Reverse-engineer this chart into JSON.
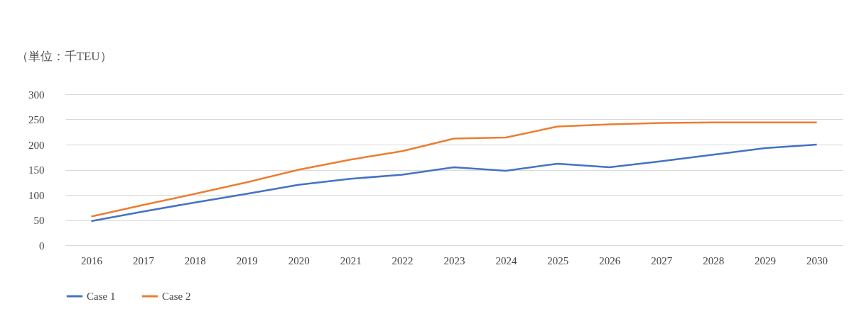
{
  "chart_data": {
    "type": "line",
    "ylabel": "（単位：千TEU）",
    "categories": [
      "2016",
      "2017",
      "2018",
      "2019",
      "2020",
      "2021",
      "2022",
      "2023",
      "2024",
      "2025",
      "2026",
      "2027",
      "2028",
      "2029",
      "2030"
    ],
    "series": [
      {
        "name": "Case 1",
        "color": "#4472c4",
        "values": [
          48,
          67,
          85,
          102,
          120,
          132,
          140,
          155,
          148,
          162,
          155,
          167,
          180,
          193,
          200
        ]
      },
      {
        "name": "Case 2",
        "color": "#ed7d31",
        "values": [
          57,
          80,
          102,
          125,
          150,
          170,
          187,
          212,
          214,
          236,
          240,
          243,
          244,
          244,
          244
        ]
      }
    ],
    "ylim": [
      0,
      300
    ],
    "yticks": [
      0,
      50,
      100,
      150,
      200,
      250,
      300
    ],
    "grid": "y",
    "legend": "bottom",
    "marker": "none",
    "line_style": "solid"
  }
}
